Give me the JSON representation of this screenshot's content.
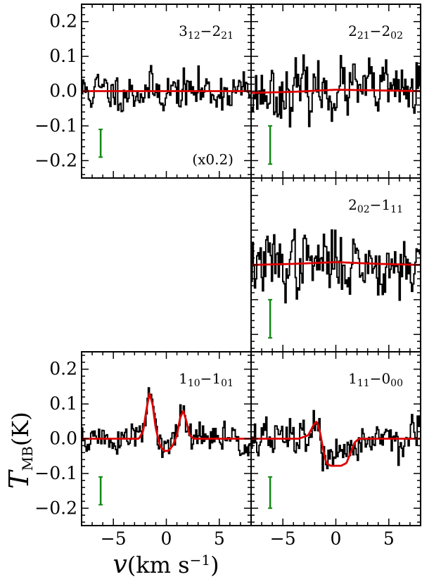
{
  "chart_data": {
    "type": "line",
    "xlabel": {
      "main": "v",
      "unit": "(km s",
      "exp": "−1",
      "close": ")"
    },
    "ylabel": {
      "main": "T",
      "sub": "MB",
      "unit": "(K)"
    },
    "xlim": [
      -8,
      8
    ],
    "ylim": [
      -0.25,
      0.25
    ],
    "x_ticks": [
      -5,
      0,
      5
    ],
    "x_tick_labels": [
      "−5",
      "0",
      "5"
    ],
    "y_ticks": [
      0.2,
      0.1,
      0.0,
      -0.1,
      -0.2
    ],
    "y_tick_labels": [
      "0.2",
      "0.1",
      "0.0",
      "−0.1",
      "−0.2"
    ],
    "colors": {
      "observed": "#000000",
      "model": "#dd0000",
      "errorbar": "#118811"
    },
    "panels": [
      {
        "id": "p312",
        "label": {
          "up": "3",
          "up_sub": "12",
          "dash": "−",
          "low": "2",
          "low_sub": "21"
        },
        "note": "(x0.2)",
        "errorbar": {
          "x": -6.2,
          "y_low": -0.19,
          "y_high": -0.11
        },
        "noise": 0.03,
        "seed": 11,
        "model": [
          [
            -8,
            0.0
          ],
          [
            8,
            0.0
          ]
        ]
      },
      {
        "id": "p221",
        "label": {
          "up": "2",
          "up_sub": "21",
          "dash": "−",
          "low": "2",
          "low_sub": "02"
        },
        "note": "",
        "errorbar": {
          "x": -6.2,
          "y_low": -0.21,
          "y_high": -0.1
        },
        "noise": 0.042,
        "seed": 23,
        "model": [
          [
            -8,
            -0.005
          ],
          [
            -4,
            -0.002
          ],
          [
            0,
            0.004
          ],
          [
            4,
            0.002
          ],
          [
            8,
            0.0
          ]
        ]
      },
      {
        "id": "p202",
        "label": {
          "up": "2",
          "up_sub": "02",
          "dash": "−",
          "low": "1",
          "low_sub": "11"
        },
        "note": "",
        "errorbar": {
          "x": -6.2,
          "y_low": -0.21,
          "y_high": -0.1
        },
        "noise": 0.048,
        "seed": 37,
        "model": [
          [
            -8,
            0.0
          ],
          [
            -4,
            0.003
          ],
          [
            0,
            0.008
          ],
          [
            4,
            0.003
          ],
          [
            8,
            0.0
          ]
        ]
      },
      {
        "id": "p110",
        "label": {
          "up": "1",
          "up_sub": "10",
          "dash": "−",
          "low": "1",
          "low_sub": "01"
        },
        "note": "",
        "errorbar": {
          "x": -6.2,
          "y_low": -0.19,
          "y_high": -0.11
        },
        "noise": 0.025,
        "seed": 51,
        "model": [
          [
            -8,
            0.0
          ],
          [
            -2.6,
            0.0
          ],
          [
            -2.2,
            0.02
          ],
          [
            -1.9,
            0.08
          ],
          [
            -1.6,
            0.13
          ],
          [
            -1.3,
            0.1
          ],
          [
            -1.0,
            0.03
          ],
          [
            -0.6,
            -0.02
          ],
          [
            -0.2,
            -0.035
          ],
          [
            0.2,
            -0.035
          ],
          [
            0.6,
            -0.02
          ],
          [
            1.0,
            0.01
          ],
          [
            1.3,
            0.06
          ],
          [
            1.6,
            0.08
          ],
          [
            1.9,
            0.05
          ],
          [
            2.2,
            0.01
          ],
          [
            2.6,
            0.0
          ],
          [
            8,
            0.0
          ]
        ]
      },
      {
        "id": "p111",
        "label": {
          "up": "1",
          "up_sub": "11",
          "dash": "−",
          "low": "0",
          "low_sub": "00"
        },
        "note": "",
        "errorbar": {
          "x": -6.2,
          "y_low": -0.2,
          "y_high": -0.11
        },
        "noise": 0.03,
        "seed": 67,
        "model": [
          [
            -8,
            0.0
          ],
          [
            -3.5,
            0.0
          ],
          [
            -2.6,
            0.01
          ],
          [
            -2.1,
            0.04
          ],
          [
            -1.8,
            0.05
          ],
          [
            -1.5,
            0.02
          ],
          [
            -1.2,
            -0.03
          ],
          [
            -0.9,
            -0.07
          ],
          [
            -0.5,
            -0.078
          ],
          [
            0.5,
            -0.078
          ],
          [
            1.0,
            -0.07
          ],
          [
            1.4,
            -0.04
          ],
          [
            1.8,
            -0.01
          ],
          [
            2.2,
            0.0
          ],
          [
            8,
            0.0
          ]
        ]
      }
    ]
  }
}
